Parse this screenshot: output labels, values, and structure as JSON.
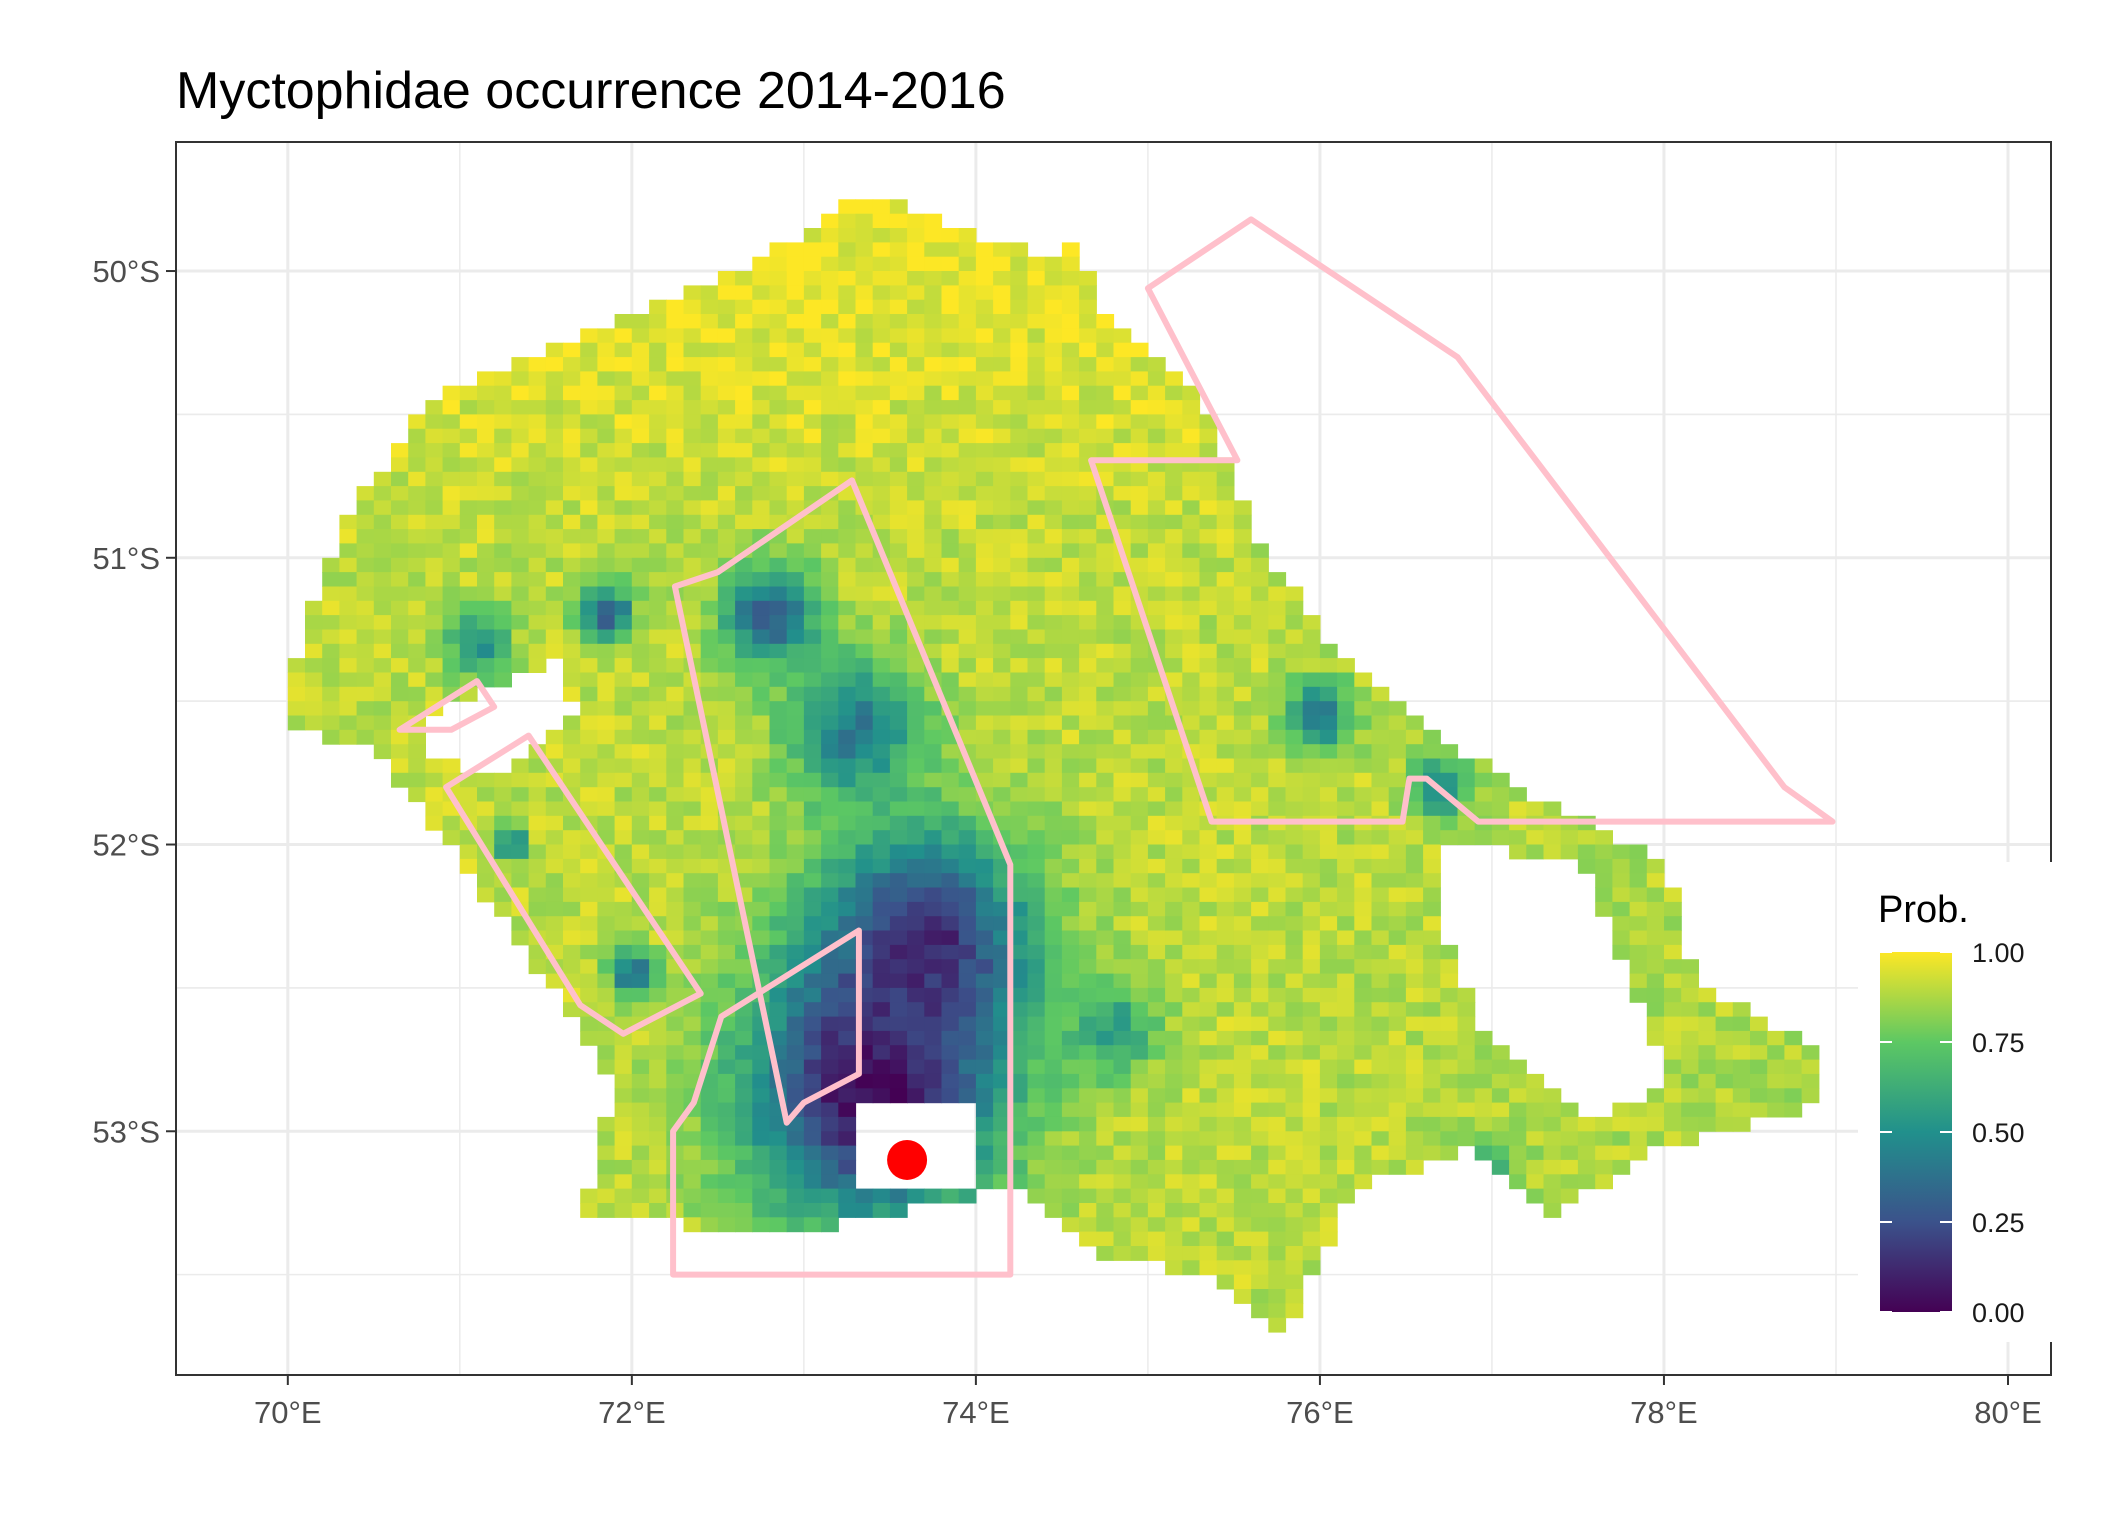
{
  "title": "Myctophidae  occurrence 2014-2016",
  "colors": {
    "panel_border": "#333333",
    "grid": "#ebebeb",
    "polygon": "#ffc0cb",
    "point": "#ff0000",
    "viridis": [
      "#440154",
      "#3b528b",
      "#21908c",
      "#5dc863",
      "#fde725"
    ]
  },
  "chart_data": {
    "type": "heatmap",
    "title": "Myctophidae  occurrence 2014-2016",
    "xlim": [
      69.35,
      80.25
    ],
    "ylim": [
      -53.85,
      -49.55
    ],
    "grid": true,
    "x_ticks": [
      {
        "value": 70,
        "label": "70°E"
      },
      {
        "value": 72,
        "label": "72°E"
      },
      {
        "value": 74,
        "label": "74°E"
      },
      {
        "value": 76,
        "label": "76°E"
      },
      {
        "value": 78,
        "label": "78°E"
      },
      {
        "value": 80,
        "label": "80°E"
      }
    ],
    "y_ticks": [
      {
        "value": -50,
        "label": "50°S"
      },
      {
        "value": -51,
        "label": "51°S"
      },
      {
        "value": -52,
        "label": "52°S"
      },
      {
        "value": -53,
        "label": "53°S"
      }
    ],
    "legend": {
      "title": "Prob.",
      "placement": "right",
      "range": [
        0,
        1
      ],
      "ticks": [
        {
          "value": 1.0,
          "label": "1.00"
        },
        {
          "value": 0.75,
          "label": "0.75"
        },
        {
          "value": 0.5,
          "label": "0.50"
        },
        {
          "value": 0.25,
          "label": "0.25"
        },
        {
          "value": 0.0,
          "label": "0.00"
        }
      ]
    },
    "cell_size_deg": {
      "lon": 0.1,
      "lat": 0.05
    },
    "zones": [
      {
        "lon": 73.4,
        "lat": -52.85,
        "r": 0.85,
        "v": 0.0
      },
      {
        "lon": 73.7,
        "lat": -52.35,
        "r": 0.7,
        "v": 0.1
      },
      {
        "lon": 73.3,
        "lat": -51.6,
        "r": 0.45,
        "v": 0.4
      },
      {
        "lon": 72.8,
        "lat": -51.2,
        "r": 0.32,
        "v": 0.3
      },
      {
        "lon": 71.85,
        "lat": -51.2,
        "r": 0.18,
        "v": 0.25
      },
      {
        "lon": 71.1,
        "lat": -51.3,
        "r": 0.22,
        "v": 0.5
      },
      {
        "lon": 72.0,
        "lat": -52.45,
        "r": 0.14,
        "v": 0.3
      },
      {
        "lon": 71.3,
        "lat": -52.0,
        "r": 0.1,
        "v": 0.35
      },
      {
        "lon": 76.0,
        "lat": -51.55,
        "r": 0.22,
        "v": 0.4
      },
      {
        "lon": 76.7,
        "lat": -51.8,
        "r": 0.18,
        "v": 0.4
      },
      {
        "lon": 74.8,
        "lat": -52.65,
        "r": 0.3,
        "v": 0.55
      },
      {
        "lon": 77.0,
        "lat": -53.1,
        "r": 0.2,
        "v": 0.65
      }
    ],
    "polygons": [
      {
        "name": "east-sector",
        "points": [
          [
            75.0,
            -50.06
          ],
          [
            75.6,
            -49.82
          ],
          [
            76.8,
            -50.3
          ],
          [
            78.7,
            -51.8
          ],
          [
            78.98,
            -51.92
          ],
          [
            76.92,
            -51.92
          ],
          [
            76.62,
            -51.77
          ],
          [
            76.52,
            -51.77
          ],
          [
            76.48,
            -51.92
          ],
          [
            75.37,
            -51.92
          ],
          [
            74.67,
            -50.66
          ],
          [
            75.52,
            -50.66
          ],
          [
            75.0,
            -50.06
          ]
        ]
      },
      {
        "name": "central-strip",
        "points": [
          [
            73.28,
            -50.73
          ],
          [
            74.2,
            -52.07
          ],
          [
            74.2,
            -53.5
          ],
          [
            72.24,
            -53.5
          ],
          [
            72.24,
            -53.0
          ],
          [
            72.36,
            -52.9
          ],
          [
            72.52,
            -52.6
          ],
          [
            73.32,
            -52.3
          ],
          [
            73.32,
            -52.8
          ],
          [
            73.0,
            -52.9
          ],
          [
            72.9,
            -52.97
          ],
          [
            72.25,
            -51.1
          ],
          [
            72.5,
            -51.05
          ],
          [
            73.28,
            -50.73
          ]
        ]
      },
      {
        "name": "west-strip",
        "points": [
          [
            71.4,
            -51.62
          ],
          [
            72.4,
            -52.52
          ],
          [
            71.95,
            -52.66
          ],
          [
            71.7,
            -52.56
          ],
          [
            70.92,
            -51.8
          ],
          [
            71.4,
            -51.62
          ]
        ]
      },
      {
        "name": "west-sliver",
        "points": [
          [
            70.65,
            -51.6
          ],
          [
            71.1,
            -51.43
          ],
          [
            71.2,
            -51.52
          ],
          [
            70.95,
            -51.6
          ],
          [
            70.65,
            -51.6
          ]
        ]
      }
    ],
    "points": [
      {
        "lon": 73.6,
        "lat": -53.1
      }
    ]
  }
}
